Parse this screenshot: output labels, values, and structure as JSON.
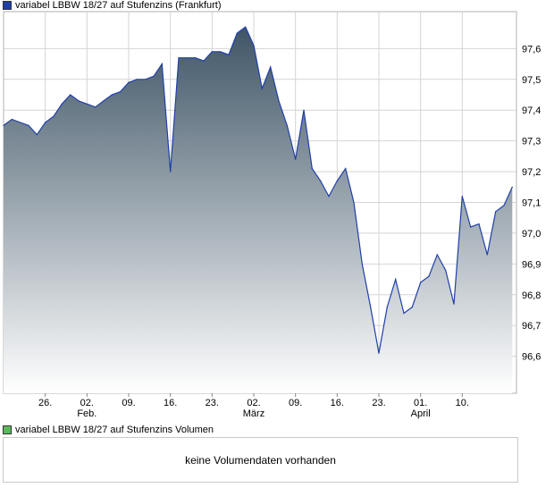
{
  "legend": {
    "price_label": "variabel LBBW 18/27 auf Stufenzins (Frankfurt)",
    "price_color": "#1f3fa8",
    "volume_label": "variabel LBBW 18/27 auf Stufenzins Volumen",
    "volume_color": "#5cb85c"
  },
  "volume_panel": {
    "message": "keine Volumendaten vorhanden"
  },
  "chart_data": {
    "type": "area",
    "title": "",
    "xlabel": "",
    "ylabel": "",
    "ylim": [
      96.48,
      97.72
    ],
    "y_ticks": [
      "97,6",
      "97,5",
      "97,4",
      "97,3",
      "97,2",
      "97,1",
      "97,0",
      "96,9",
      "96,8",
      "96,7",
      "96,6"
    ],
    "y_tick_values": [
      97.6,
      97.5,
      97.4,
      97.3,
      97.2,
      97.1,
      97.0,
      96.9,
      96.8,
      96.7,
      96.6
    ],
    "x_day_ticks": [
      "26.",
      "02.",
      "09.",
      "16.",
      "23.",
      "02.",
      "09.",
      "16.",
      "23.",
      "01.",
      "10."
    ],
    "x_day_tick_positions": [
      5,
      10,
      15,
      20,
      25,
      30,
      35,
      40,
      45,
      50,
      55
    ],
    "x_month_labels": [
      "Feb.",
      "März",
      "April"
    ],
    "x_month_positions": [
      10,
      30,
      50
    ],
    "x_range": [
      0,
      61.5
    ],
    "grid": true,
    "line_color": "#1f3fa8",
    "fill_top_color": "#3f5566",
    "fill_bottom_color": "#ffffff",
    "x": [
      0,
      1,
      2,
      3,
      4,
      5,
      6,
      7,
      8,
      9,
      10,
      11,
      12,
      13,
      14,
      15,
      16,
      17,
      18,
      19,
      20,
      21,
      22,
      23,
      24,
      25,
      26,
      27,
      28,
      29,
      30,
      31,
      32,
      33,
      34,
      35,
      36,
      37,
      38,
      39,
      40,
      41,
      42,
      43,
      44,
      45,
      46,
      47,
      48,
      49,
      50,
      51,
      52,
      53,
      54,
      55,
      56,
      57,
      58,
      59,
      60,
      61
    ],
    "values": [
      97.35,
      97.37,
      97.36,
      97.35,
      97.32,
      97.36,
      97.38,
      97.42,
      97.45,
      97.43,
      97.42,
      97.41,
      97.43,
      97.45,
      97.46,
      97.49,
      97.5,
      97.5,
      97.51,
      97.55,
      97.2,
      97.57,
      97.57,
      97.57,
      97.56,
      97.59,
      97.59,
      97.58,
      97.65,
      97.67,
      97.61,
      97.47,
      97.54,
      97.43,
      97.35,
      97.24,
      97.4,
      97.21,
      97.17,
      97.12,
      97.17,
      97.21,
      97.1,
      96.9,
      96.76,
      96.61,
      96.76,
      96.85,
      96.74,
      96.76,
      96.84,
      96.86,
      96.93,
      96.88,
      96.77,
      97.12,
      97.02,
      97.03,
      96.93,
      97.07,
      97.09,
      97.15
    ]
  }
}
